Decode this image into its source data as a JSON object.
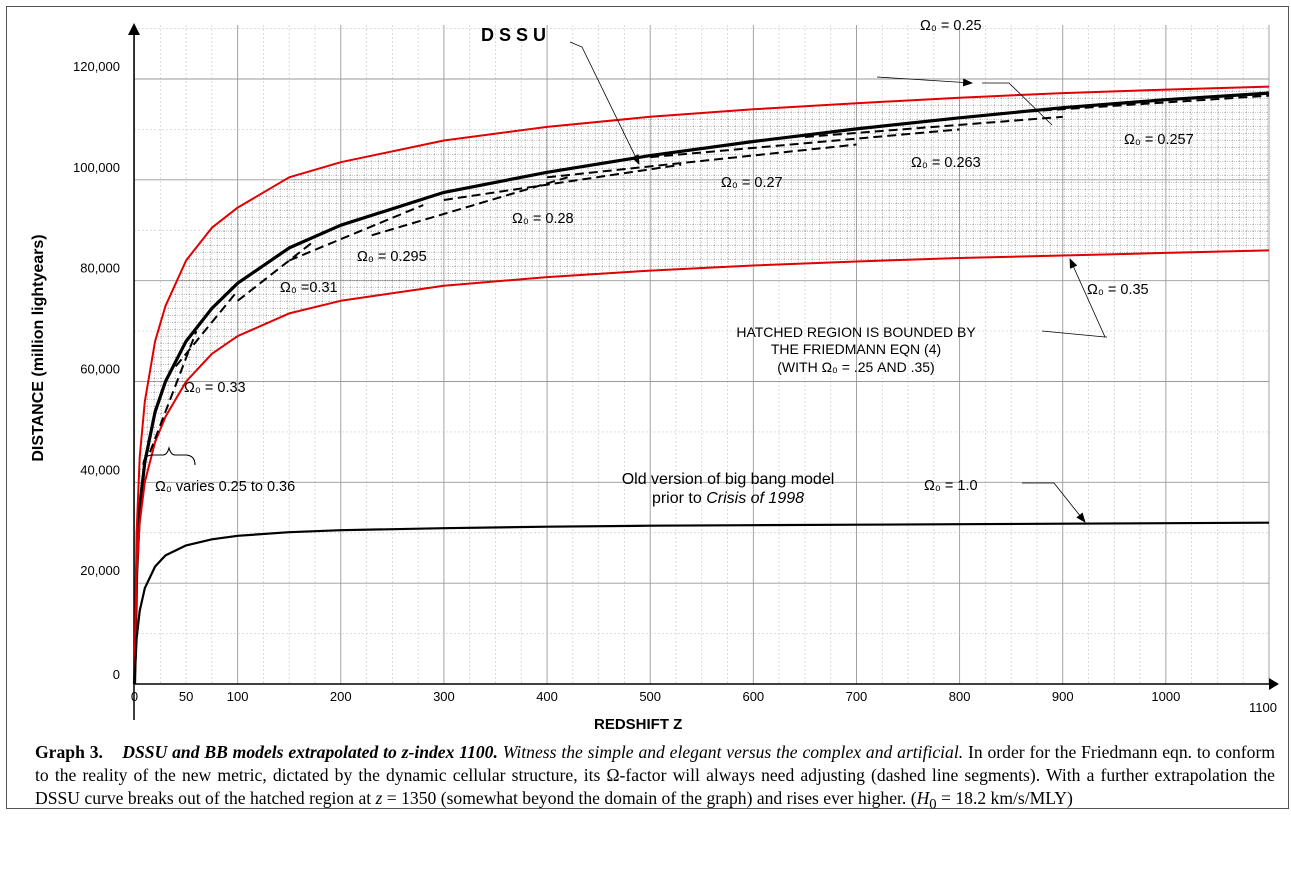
{
  "chart_data": {
    "type": "line",
    "title": "",
    "xlabel": "REDSHIFT  Z",
    "ylabel": "DISTANCE   (million lightyears)",
    "xlim": [
      -0.5,
      1100
    ],
    "ylim": [
      0,
      120000
    ],
    "x_ticks": [
      {
        "value": 0,
        "label": "0"
      },
      {
        "value": 50,
        "label": "50"
      },
      {
        "value": 100,
        "label": "100"
      },
      {
        "value": 200,
        "label": "200"
      },
      {
        "value": 300,
        "label": "300"
      },
      {
        "value": 400,
        "label": "400"
      },
      {
        "value": 500,
        "label": "500"
      },
      {
        "value": 600,
        "label": "600"
      },
      {
        "value": 700,
        "label": "700"
      },
      {
        "value": 800,
        "label": "800"
      },
      {
        "value": 900,
        "label": "900"
      },
      {
        "value": 1000,
        "label": "1000"
      },
      {
        "value": 1100,
        "label": "1100"
      }
    ],
    "y_ticks": [
      {
        "value": 0,
        "label": "0"
      },
      {
        "value": 20000,
        "label": "20,000"
      },
      {
        "value": 40000,
        "label": "40,000"
      },
      {
        "value": 60000,
        "label": "60,000"
      },
      {
        "value": 80000,
        "label": "80,000"
      },
      {
        "value": 100000,
        "label": "100,000"
      },
      {
        "value": 120000,
        "label": "120,000"
      }
    ],
    "grid": true,
    "series": [
      {
        "name": "DSSU",
        "color": "#000000",
        "style": "solid-thick",
        "x": [
          0,
          2,
          5,
          10,
          20,
          30,
          50,
          75,
          100,
          150,
          200,
          300,
          400,
          500,
          600,
          700,
          800,
          900,
          1000,
          1100
        ],
        "y": [
          0,
          22000,
          35000,
          44000,
          54000,
          60000,
          68000,
          74500,
          79500,
          86500,
          91000,
          97500,
          101500,
          104800,
          107600,
          110100,
          112300,
          114300,
          115900,
          117200
        ]
      },
      {
        "name": "Ω0 = 0.25",
        "color": "#e00000",
        "style": "solid",
        "x": [
          0,
          2,
          5,
          10,
          20,
          30,
          50,
          75,
          100,
          150,
          200,
          300,
          400,
          500,
          600,
          700,
          800,
          900,
          1000,
          1100
        ],
        "y": [
          0,
          30000,
          45000,
          56000,
          68000,
          75000,
          84000,
          90500,
          94500,
          100500,
          103500,
          107800,
          110500,
          112500,
          114000,
          115200,
          116300,
          117200,
          117900,
          118500
        ]
      },
      {
        "name": "Ω0 = 0.35",
        "color": "#e00000",
        "style": "solid",
        "x": [
          0,
          2,
          5,
          10,
          20,
          30,
          50,
          75,
          100,
          150,
          200,
          300,
          400,
          500,
          600,
          700,
          800,
          900,
          1000,
          1100
        ],
        "y": [
          0,
          22000,
          32000,
          40000,
          48000,
          53000,
          60000,
          65500,
          69000,
          73500,
          76000,
          79000,
          80700,
          82000,
          83000,
          83800,
          84500,
          85000,
          85500,
          86000
        ]
      },
      {
        "name": "Ω0 = 1.0",
        "color": "#000000",
        "style": "solid",
        "x": [
          0,
          2,
          5,
          10,
          20,
          30,
          50,
          75,
          100,
          150,
          200,
          300,
          400,
          500,
          600,
          700,
          800,
          900,
          1000,
          1100
        ],
        "y": [
          0,
          9000,
          14500,
          19000,
          23300,
          25500,
          27500,
          28700,
          29400,
          30100,
          30500,
          30900,
          31200,
          31400,
          31500,
          31600,
          31700,
          31800,
          31900,
          32000
        ]
      }
    ],
    "dashed_segments": [
      {
        "x": [
          15,
          60
        ],
        "y": [
          46000,
          70000
        ]
      },
      {
        "x": [
          40,
          100
        ],
        "y": [
          63000,
          78000
        ]
      },
      {
        "x": [
          100,
          175
        ],
        "y": [
          76000,
          88000
        ]
      },
      {
        "x": [
          150,
          280
        ],
        "y": [
          84000,
          95000
        ]
      },
      {
        "x": [
          230,
          420
        ],
        "y": [
          89000,
          100500
        ]
      },
      {
        "x": [
          300,
          530
        ],
        "y": [
          96000,
          103000
        ]
      },
      {
        "x": [
          400,
          700
        ],
        "y": [
          100500,
          107000
        ]
      },
      {
        "x": [
          500,
          800
        ],
        "y": [
          104500,
          110000
        ]
      },
      {
        "x": [
          650,
          900
        ],
        "y": [
          108500,
          112500
        ]
      },
      {
        "x": [
          840,
          1100
        ],
        "y": [
          113200,
          116700
        ]
      }
    ],
    "hatched_region": "between Ω0 = 0.25 and Ω0 = 0.35",
    "annotations": {
      "dssu_label": "D S S U",
      "omega_025": "Ω₀ = 0.25",
      "omega_0257": "Ω₀ = 0.257",
      "omega_0263": "Ω₀ = 0.263",
      "omega_027": "Ω₀ = 0.27",
      "omega_028": "Ω₀ = 0.28",
      "omega_0295": "Ω₀ = 0.295",
      "omega_031": "Ω₀ =0.31",
      "omega_033": "Ω₀ = 0.33",
      "omega_035": "Ω₀ = 0.35",
      "omega_10": "Ω₀ = 1.0",
      "omega_varies": "Ω₀ varies 0.25 to 0.36",
      "hatched_line1": "HATCHED REGION IS BOUNDED BY",
      "hatched_line2": "THE FRIEDMANN EQN (4)",
      "hatched_line3": "(WITH Ω₀ = .25 AND .35)",
      "old_version_line1": "Old version of big bang model",
      "old_version_line2_prefix": "prior to ",
      "old_version_line2_italic": "Crisis of 1998"
    }
  },
  "caption": {
    "label": "Graph 3.",
    "title": "DSSU and BB models extrapolated to z-index 1100.",
    "italic_sentence": "Witness the simple and elegant versus the complex and artificial.",
    "body_1": "In order for the Friedmann eqn. to conform to the reality of the new metric, dictated by the dynamic cellular structure, its Ω-factor will always need adjusting (dashed line segments). With a further extrapolation the DSSU curve breaks out of the hatched region at ",
    "z_var": "z",
    "body_2": " = 1350 (somewhat beyond the domain of the graph) and rises ever higher. (",
    "h_var": "H",
    "h_sub": "0",
    "body_3": " = 18.2 km/s/MLY)"
  }
}
